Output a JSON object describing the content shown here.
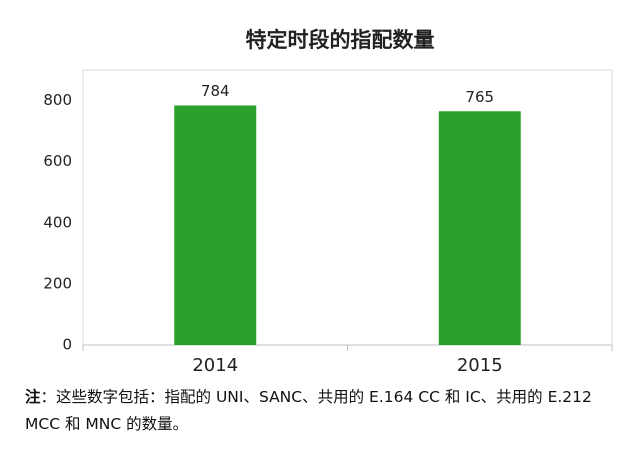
{
  "chart_data": {
    "type": "bar",
    "title": "特定时段的指配数量",
    "categories": [
      "2014",
      "2015"
    ],
    "values": [
      784,
      765
    ],
    "color": "#2ca02c",
    "ylim": [
      0,
      900
    ],
    "yticks": [
      0,
      200,
      400,
      600,
      800
    ],
    "grid": false
  },
  "note": {
    "label": "注",
    "text": "：这些数字包括：指配的 UNI、SANC、共用的 E.164 CC 和 IC、共用的 E.212 MCC 和 MNC 的数量。"
  }
}
